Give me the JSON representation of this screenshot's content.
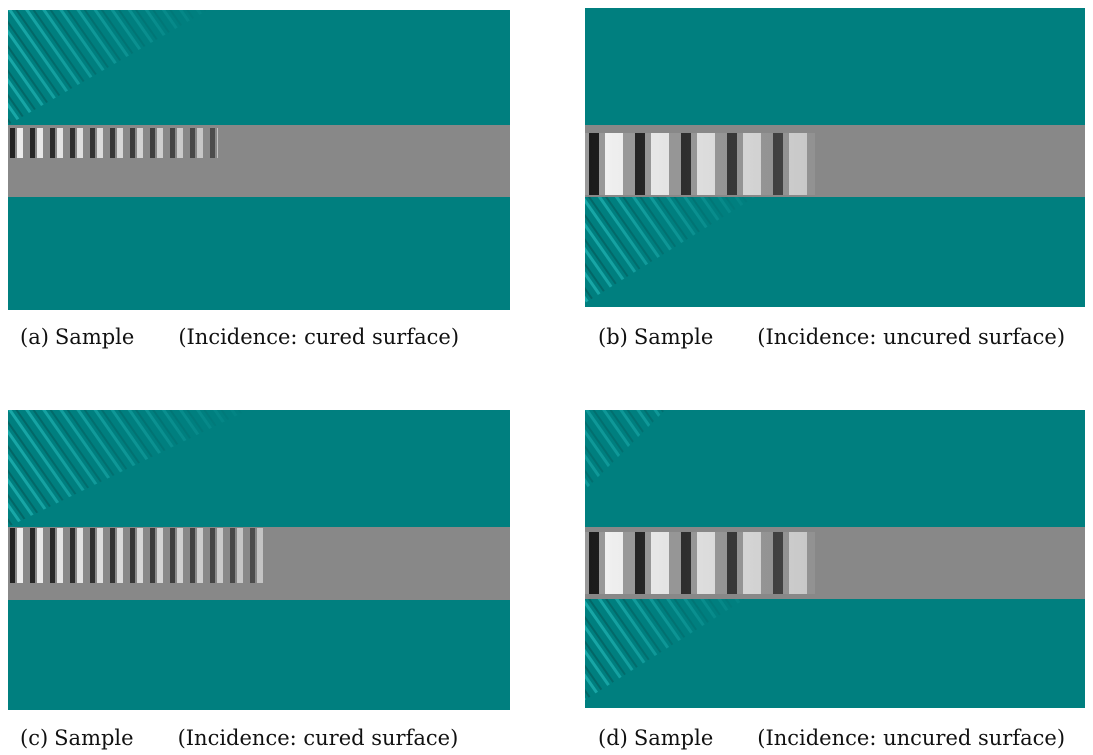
{
  "panels": [
    {
      "label": "(a)",
      "sample": "Sample",
      "incidence": "(Incidence: cured surface)"
    },
    {
      "label": "(b)",
      "sample": "Sample",
      "incidence": "(Incidence: uncured surface)"
    },
    {
      "label": "(c)",
      "sample": "Sample",
      "incidence": "(Incidence: cured surface)"
    },
    {
      "label": "(d)",
      "sample": "Sample",
      "incidence": "(Incidence: uncured surface)"
    }
  ]
}
